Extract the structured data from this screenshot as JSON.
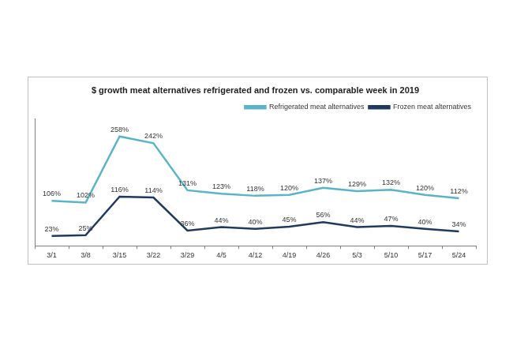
{
  "chart_data": {
    "type": "line",
    "title": "$ growth meat alternatives refrigerated and frozen vs. comparable week in 2019",
    "categories": [
      "3/1",
      "3/8",
      "3/15",
      "3/22",
      "3/29",
      "4/5",
      "4/12",
      "4/19",
      "4/26",
      "5/3",
      "5/10",
      "5/17",
      "5/24"
    ],
    "series": [
      {
        "name": "Refrigerated meat alternatives",
        "color": "#5ab4c9",
        "values": [
          106,
          102,
          258,
          242,
          131,
          123,
          118,
          120,
          137,
          129,
          132,
          120,
          112
        ],
        "value_labels": [
          "106%",
          "102%",
          "258%",
          "242%",
          "131%",
          "123%",
          "118%",
          "120%",
          "137%",
          "129%",
          "132%",
          "120%",
          "112%"
        ]
      },
      {
        "name": "Frozen meat alternatives",
        "color": "#1f3a5f",
        "values": [
          23,
          25,
          116,
          114,
          36,
          44,
          40,
          45,
          56,
          44,
          47,
          40,
          34
        ],
        "value_labels": [
          "23%",
          "25%",
          "116%",
          "114%",
          "36%",
          "44%",
          "40%",
          "45%",
          "56%",
          "44%",
          "47%",
          "40%",
          "34%"
        ]
      }
    ],
    "ylim": [
      0,
      300
    ],
    "grid": false,
    "legend": "top-right",
    "data_labels": true,
    "tick_labels": "x",
    "marker": "none"
  }
}
